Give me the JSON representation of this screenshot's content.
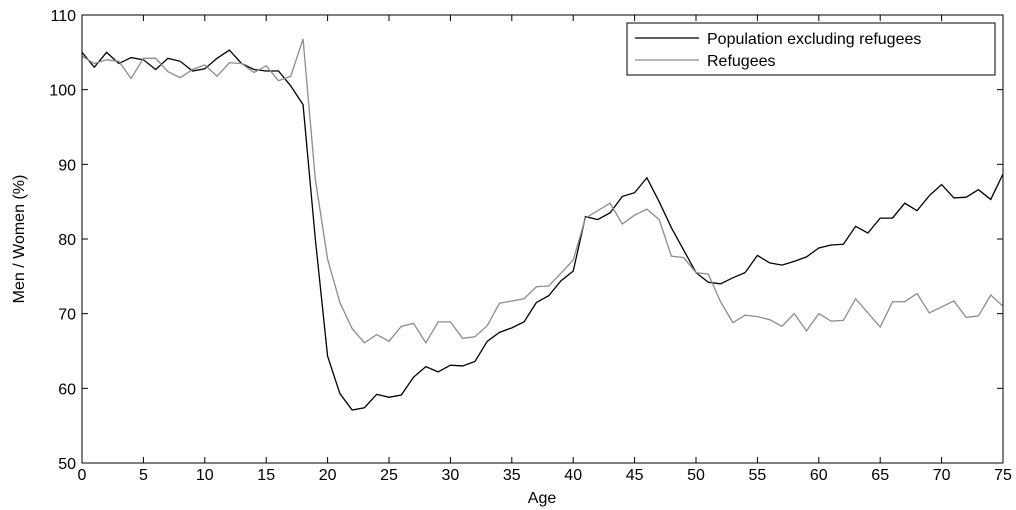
{
  "chart_data": {
    "type": "line",
    "xlabel": "Age",
    "ylabel": "Men / Women (%)",
    "x": [
      0,
      1,
      2,
      3,
      4,
      5,
      6,
      7,
      8,
      9,
      10,
      11,
      12,
      13,
      14,
      15,
      16,
      17,
      18,
      19,
      20,
      21,
      22,
      23,
      24,
      25,
      26,
      27,
      28,
      29,
      30,
      31,
      32,
      33,
      34,
      35,
      36,
      37,
      38,
      39,
      40,
      41,
      42,
      43,
      44,
      45,
      46,
      47,
      48,
      49,
      50,
      51,
      52,
      53,
      54,
      55,
      56,
      57,
      58,
      59,
      60,
      61,
      62,
      63,
      64,
      65,
      66,
      67,
      68,
      69,
      70,
      71,
      72,
      73,
      74,
      75
    ],
    "series": [
      {
        "name": "Population excluding refugees",
        "color": "#000000",
        "values": [
          105,
          103,
          105,
          103.5,
          104.3,
          104,
          102.7,
          104.2,
          103.8,
          102.5,
          102.8,
          104.2,
          105.3,
          103.5,
          102.7,
          102.5,
          102.5,
          100.5,
          98,
          80,
          64.3,
          59.3,
          57.1,
          57.4,
          59.2,
          58.8,
          59.1,
          61.5,
          62.9,
          62.2,
          63.1,
          63,
          63.6,
          66.3,
          67.5,
          68.1,
          68.9,
          71.5,
          72.4,
          74.4,
          75.7,
          83,
          82.6,
          83.5,
          85.7,
          86.2,
          88.2,
          85,
          81.5,
          78.5,
          75.5,
          74.2,
          74,
          74.8,
          75.5,
          77.8,
          76.8,
          76.5,
          77,
          77.6,
          78.8,
          79.2,
          79.3,
          81.7,
          80.8,
          82.8,
          82.8,
          84.8,
          83.8,
          85.8,
          87.3,
          85.5,
          85.6,
          86.6,
          85.3,
          88.7
        ]
      },
      {
        "name": "Refugees",
        "color": "#8c8c8c",
        "values": [
          104.5,
          103.5,
          104,
          103.8,
          101.5,
          104.2,
          104.2,
          102.4,
          101.6,
          102.7,
          103.3,
          101.8,
          103.6,
          103.5,
          102.3,
          103.2,
          101.2,
          101.8,
          106.8,
          88,
          77.3,
          71.5,
          68,
          66.1,
          67.2,
          66.3,
          68.3,
          68.7,
          66.1,
          68.9,
          68.9,
          66.7,
          66.9,
          68.4,
          71.4,
          71.7,
          72,
          73.6,
          73.7,
          75.4,
          77.2,
          82.8,
          83.8,
          84.8,
          82,
          83.2,
          84,
          82.6,
          77.7,
          77.5,
          75.5,
          75.3,
          71.6,
          68.8,
          69.8,
          69.6,
          69.2,
          68.3,
          70,
          67.7,
          70,
          69,
          69.1,
          72,
          70.1,
          68.2,
          71.6,
          71.6,
          72.7,
          70.1,
          70.9,
          71.7,
          69.5,
          69.7,
          72.5,
          71
        ]
      }
    ],
    "xlim": [
      0,
      75
    ],
    "xticks": [
      0,
      5,
      10,
      15,
      20,
      25,
      30,
      35,
      40,
      45,
      50,
      55,
      60,
      65,
      70,
      75
    ],
    "ylim": [
      50,
      110
    ],
    "yticks": [
      50,
      60,
      70,
      80,
      90,
      100,
      110
    ],
    "grid": false,
    "legend": "upper right"
  }
}
